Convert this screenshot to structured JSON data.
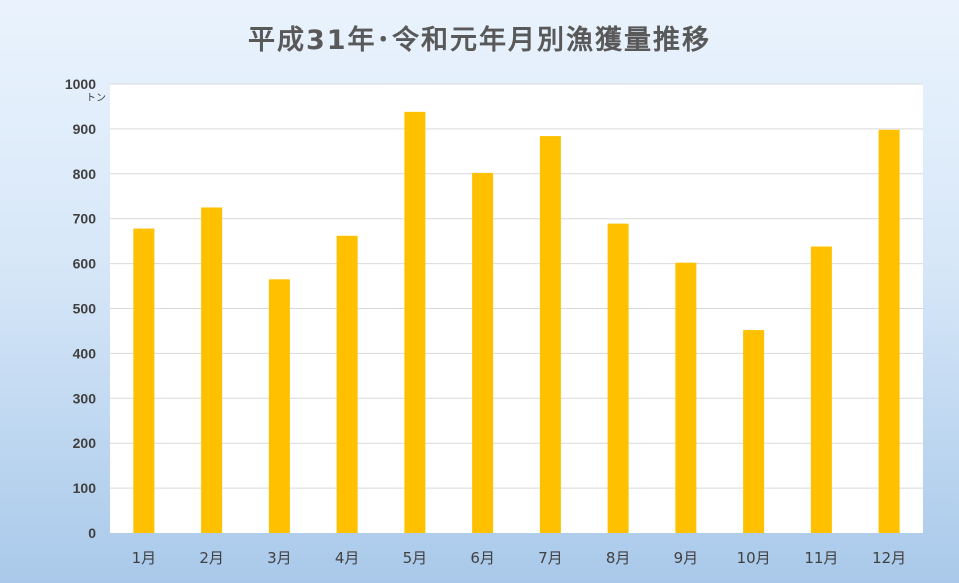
{
  "title": "平成31年･令和元年月別漁獲量推移",
  "chart_data": {
    "type": "bar",
    "title": "平成31年･令和元年月別漁獲量推移",
    "xlabel": "",
    "ylabel": "",
    "y_unit": "トン",
    "categories": [
      "1月",
      "2月",
      "3月",
      "4月",
      "5月",
      "6月",
      "7月",
      "8月",
      "9月",
      "10月",
      "11月",
      "12月"
    ],
    "values": [
      678,
      725,
      565,
      662,
      938,
      802,
      884,
      689,
      602,
      452,
      638,
      898
    ],
    "ylim": [
      0,
      1000
    ],
    "yticks": [
      0,
      100,
      200,
      300,
      400,
      500,
      600,
      700,
      800,
      900,
      1000
    ],
    "grid": true,
    "legend": "none",
    "colors": {
      "bar": "#ffc000",
      "grid": "#d9d9d9",
      "text": "#404040"
    }
  }
}
